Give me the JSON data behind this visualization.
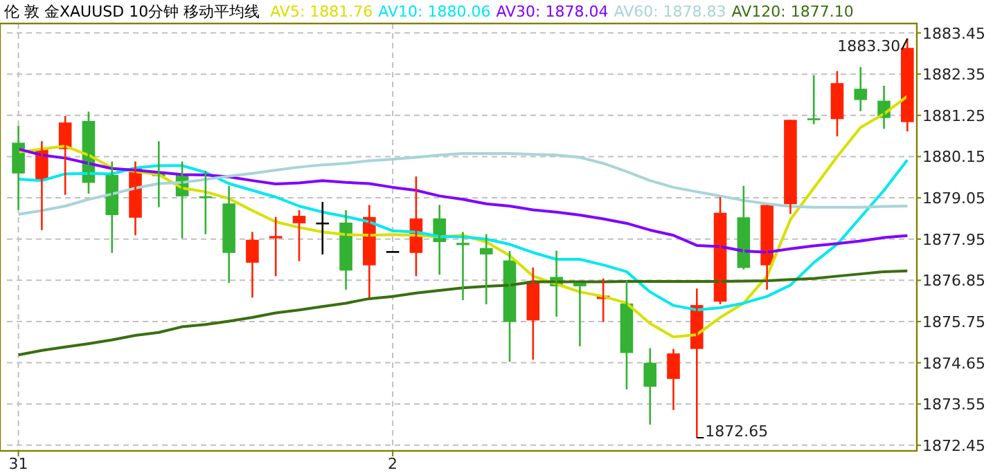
{
  "chart_data": {
    "type": "candlestick",
    "title": "伦 敦 金XAUUSD 10分钟 移动平均线",
    "categories": [
      "31",
      null,
      null,
      null,
      null,
      null,
      null,
      null,
      null,
      null,
      null,
      null,
      null,
      null,
      null,
      null,
      "2",
      null,
      null,
      null,
      null,
      null,
      null,
      null,
      null,
      null,
      null,
      null,
      null,
      null,
      null,
      null,
      null,
      null,
      null,
      null,
      null,
      null,
      null
    ],
    "ohlc": [
      [
        1880.52,
        1880.97,
        1878.73,
        1879.7
      ],
      [
        1879.52,
        1880.56,
        1878.19,
        1880.34
      ],
      [
        1880.35,
        1881.23,
        1879.13,
        1881.06
      ],
      [
        1881.1,
        1881.35,
        1879.16,
        1879.45
      ],
      [
        1879.66,
        1880.02,
        1877.58,
        1878.59
      ],
      [
        1878.52,
        1880.02,
        1878.05,
        1879.84
      ],
      [
        1879.73,
        1880.56,
        1878.8,
        1879.63
      ],
      [
        1879.66,
        1880.02,
        1877.97,
        1879.09
      ],
      [
        1879.09,
        1879.77,
        1878.08,
        1879.06
      ],
      [
        1878.9,
        1879.37,
        1876.78,
        1877.58
      ],
      [
        1877.32,
        1878.14,
        1876.39,
        1877.93
      ],
      [
        1877.97,
        1878.54,
        1876.96,
        1878.03
      ],
      [
        1878.37,
        1878.72,
        1877.36,
        1878.57
      ],
      [
        1878.39,
        1878.94,
        1877.54,
        1878.39
      ],
      [
        1878.39,
        1878.72,
        1876.6,
        1877.11
      ],
      [
        1877.25,
        1878.86,
        1876.39,
        1878.54
      ],
      [
        1877.63,
        1877.63,
        1877.63,
        1877.63
      ],
      [
        1877.58,
        1879.62,
        1876.96,
        1878.5
      ],
      [
        1878.5,
        1878.86,
        1877.0,
        1877.87
      ],
      [
        1877.85,
        1878.14,
        1876.32,
        1877.79
      ],
      [
        1877.71,
        1878.08,
        1876.21,
        1877.54
      ],
      [
        1877.38,
        1877.63,
        1874.68,
        1875.74
      ],
      [
        1875.78,
        1877.19,
        1874.73,
        1876.83
      ],
      [
        1876.94,
        1877.64,
        1875.88,
        1876.69
      ],
      [
        1876.78,
        1876.78,
        1875.09,
        1876.69
      ],
      [
        1876.35,
        1876.9,
        1875.74,
        1876.44
      ],
      [
        1876.23,
        1876.84,
        1873.94,
        1874.91
      ],
      [
        1874.65,
        1875.04,
        1873.0,
        1874.01
      ],
      [
        1874.22,
        1875.02,
        1873.39,
        1874.9
      ],
      [
        1875.02,
        1876.63,
        1872.65,
        1876.19
      ],
      [
        1876.28,
        1879.07,
        1876.21,
        1878.65
      ],
      [
        1878.53,
        1879.37,
        1877.14,
        1877.18
      ],
      [
        1877.25,
        1878.86,
        1876.6,
        1878.86
      ],
      [
        1878.88,
        1881.13,
        1878.62,
        1881.13
      ],
      [
        1881.17,
        1882.32,
        1881.01,
        1881.15
      ],
      [
        1881.15,
        1882.43,
        1880.69,
        1882.11
      ],
      [
        1881.96,
        1882.54,
        1881.36,
        1881.66
      ],
      [
        1881.64,
        1882.04,
        1880.89,
        1881.18
      ],
      [
        1881.07,
        1883.3,
        1880.82,
        1883.05
      ]
    ],
    "colors": [
      "#33b233",
      "#ff2200",
      "#ff2200",
      "#33b233",
      "#33b233",
      "#ff2200",
      "#33b233",
      "#33b233",
      "#33b233",
      "#33b233",
      "#ff2200",
      "#ff2200",
      "#ff2200",
      "#000000",
      "#33b233",
      "#ff2200",
      "#000000",
      "#ff2200",
      "#33b233",
      "#33b233",
      "#33b233",
      "#33b233",
      "#ff2200",
      "#33b233",
      "#33b233",
      "#ff2200",
      "#33b233",
      "#33b233",
      "#ff2200",
      "#ff2200",
      "#ff2200",
      "#33b233",
      "#ff2200",
      "#ff2200",
      "#33b233",
      "#ff2200",
      "#33b233",
      "#33b233",
      "#ff2200"
    ],
    "series": [
      {
        "name": "AV5: 1881.76",
        "type": "line",
        "color": "#d8e000",
        "values": [
          1880.27,
          1880.35,
          1880.43,
          1880.19,
          1879.85,
          1879.75,
          1879.67,
          1879.31,
          1879.21,
          1879.03,
          1878.71,
          1878.41,
          1878.26,
          1878.14,
          1878.07,
          1878.05,
          1878.07,
          1878.05,
          1878.01,
          1878.05,
          1877.87,
          1877.51,
          1876.96,
          1876.75,
          1876.54,
          1876.42,
          1876.24,
          1875.7,
          1875.34,
          1875.4,
          1875.86,
          1876.24,
          1876.96,
          1878.47,
          1879.31,
          1880.15,
          1880.93,
          1881.29,
          1881.76
        ]
      },
      {
        "name": "AV10: 1880.06",
        "type": "line",
        "color": "#00e8f0",
        "values": [
          1879.55,
          1879.51,
          1879.69,
          1879.7,
          1879.69,
          1879.85,
          1879.91,
          1879.91,
          1879.73,
          1879.43,
          1879.25,
          1879.07,
          1878.83,
          1878.67,
          1878.55,
          1878.41,
          1878.17,
          1878.14,
          1878.02,
          1878.01,
          1877.95,
          1877.81,
          1877.59,
          1877.41,
          1877.41,
          1877.26,
          1877.08,
          1876.54,
          1876.18,
          1876.06,
          1876.12,
          1876.24,
          1876.42,
          1876.72,
          1877.32,
          1877.81,
          1878.53,
          1879.25,
          1880.06
        ]
      },
      {
        "name": "AV30: 1878.04",
        "type": "line",
        "color": "#8000ff",
        "values": [
          1880.35,
          1880.19,
          1880.11,
          1879.97,
          1879.83,
          1879.79,
          1879.73,
          1879.67,
          1879.66,
          1879.61,
          1879.51,
          1879.42,
          1879.45,
          1879.51,
          1879.46,
          1879.43,
          1879.33,
          1879.25,
          1879.1,
          1879.01,
          1878.89,
          1878.83,
          1878.73,
          1878.67,
          1878.59,
          1878.49,
          1878.37,
          1878.19,
          1878.05,
          1877.78,
          1877.75,
          1877.63,
          1877.6,
          1877.69,
          1877.77,
          1877.83,
          1877.9,
          1877.99,
          1878.04
        ]
      },
      {
        "name": "AV60: 1878.83",
        "type": "line",
        "color": "#a8d4d8",
        "values": [
          1878.61,
          1878.71,
          1878.83,
          1879.01,
          1879.15,
          1879.31,
          1879.43,
          1879.46,
          1879.54,
          1879.63,
          1879.7,
          1879.79,
          1879.87,
          1879.93,
          1879.97,
          1880.04,
          1880.08,
          1880.13,
          1880.19,
          1880.23,
          1880.23,
          1880.23,
          1880.21,
          1880.19,
          1880.13,
          1879.97,
          1879.75,
          1879.51,
          1879.33,
          1879.21,
          1879.1,
          1878.98,
          1878.89,
          1878.82,
          1878.8,
          1878.8,
          1878.8,
          1878.82,
          1878.83
        ]
      },
      {
        "name": "AV120: 1877.10",
        "type": "line",
        "color": "#3a6e10",
        "values": [
          1874.86,
          1874.98,
          1875.07,
          1875.16,
          1875.26,
          1875.38,
          1875.46,
          1875.61,
          1875.67,
          1875.76,
          1875.86,
          1875.98,
          1876.06,
          1876.15,
          1876.24,
          1876.36,
          1876.42,
          1876.51,
          1876.58,
          1876.65,
          1876.69,
          1876.72,
          1876.81,
          1876.81,
          1876.81,
          1876.81,
          1876.82,
          1876.82,
          1876.82,
          1876.82,
          1876.82,
          1876.83,
          1876.84,
          1876.87,
          1876.9,
          1876.96,
          1877.02,
          1877.08,
          1877.1
        ]
      }
    ],
    "ylim": [
      1872.3,
      1883.7
    ],
    "yticks": [
      1883.45,
      1882.35,
      1881.25,
      1880.15,
      1879.05,
      1877.95,
      1876.85,
      1875.75,
      1874.65,
      1873.55,
      1872.45
    ],
    "annotations": [
      "1883.30",
      "1872.65"
    ],
    "grid": true,
    "legend": "top"
  }
}
